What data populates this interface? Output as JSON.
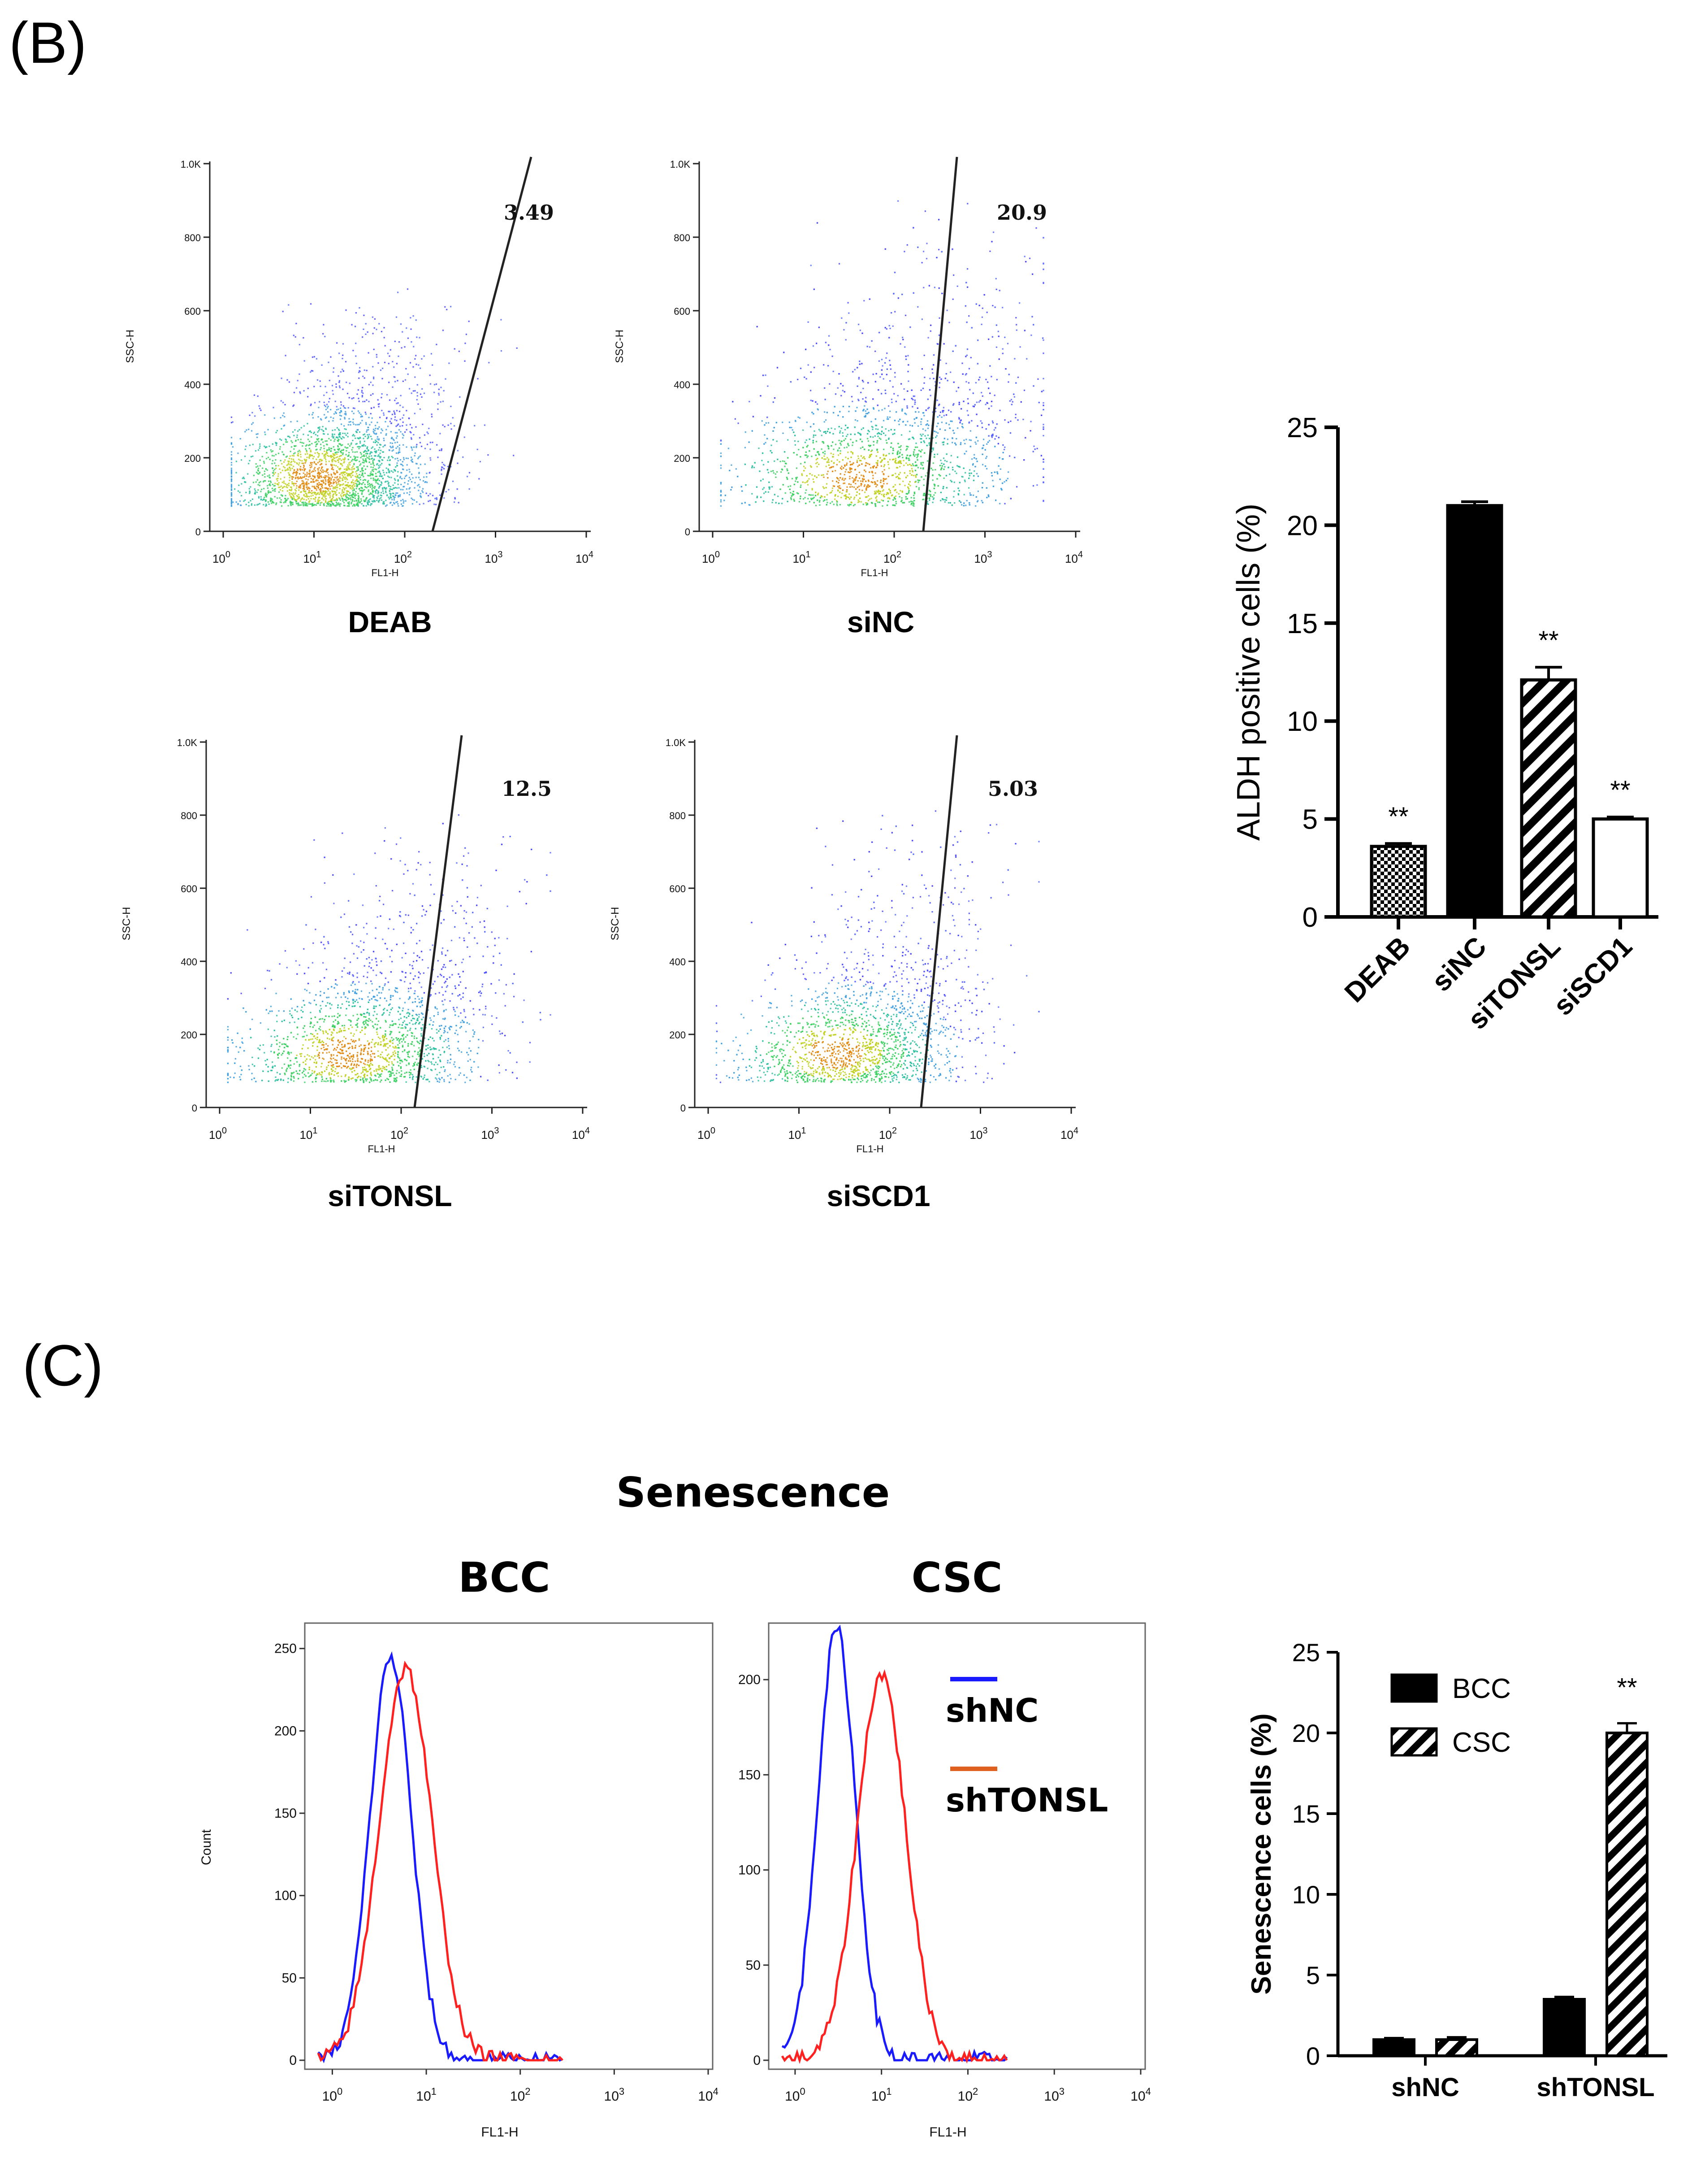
{
  "panel_b_label": "(B)",
  "panel_c_label": "(C)",
  "flow": {
    "x_axis_label": "FL1-H",
    "y_axis_label": "SSC-H",
    "y_ticks": [
      "0",
      "200",
      "400",
      "600",
      "800",
      "1.0K"
    ],
    "x_ticks": [
      {
        "base": "10",
        "exp": "0"
      },
      {
        "base": "10",
        "exp": "1"
      },
      {
        "base": "10",
        "exp": "2"
      },
      {
        "base": "10",
        "exp": "3"
      },
      {
        "base": "10",
        "exp": "4"
      }
    ],
    "plots": [
      {
        "sample": "DEAB",
        "gate_value": "3.49"
      },
      {
        "sample": "siNC",
        "gate_value": "20.9"
      },
      {
        "sample": "siTONSL",
        "gate_value": "12.5"
      },
      {
        "sample": "siSCD1",
        "gate_value": "5.03"
      }
    ]
  },
  "senescence_title": "Senescence",
  "histograms": {
    "x_axis_label": "FL1-H",
    "y_axis_label": "Count",
    "legend": [
      {
        "label": "shNC",
        "color": "#1a1aff"
      },
      {
        "label": "shTONSL",
        "color": "#e06020"
      }
    ],
    "panels": [
      {
        "title": "BCC",
        "y_ticks": [
          "0",
          "50",
          "100",
          "150",
          "200",
          "250"
        ]
      },
      {
        "title": "CSC",
        "y_ticks": [
          "0",
          "50",
          "100",
          "150",
          "200"
        ]
      }
    ]
  },
  "chart_data": [
    {
      "type": "bar",
      "ylabel": "ALDH positive cells (%)",
      "categories": [
        "DEAB",
        "siNC",
        "siTONSL",
        "siSCD1"
      ],
      "values": [
        3.6,
        21.0,
        12.1,
        5.0
      ],
      "errors": [
        0.15,
        0.2,
        0.65,
        0.1
      ],
      "fills": [
        "checker",
        "solid-black",
        "hatched",
        "white"
      ],
      "significance": [
        "**",
        "",
        "**",
        "**"
      ],
      "ylim": [
        0,
        25
      ],
      "yticks": [
        "0",
        "5",
        "10",
        "15",
        "20",
        "25"
      ]
    },
    {
      "type": "bar",
      "ylabel": "Senescence cells (%)",
      "categories": [
        "shNC",
        "shTONSL"
      ],
      "series": [
        {
          "name": "BCC",
          "values": [
            1.0,
            3.5
          ],
          "errors": [
            0.1,
            0.15
          ],
          "fill": "solid-black"
        },
        {
          "name": "CSC",
          "values": [
            1.0,
            20.0
          ],
          "errors": [
            0.15,
            0.6
          ],
          "fill": "hatched"
        }
      ],
      "significance": [
        "",
        "**"
      ],
      "ylim": [
        0,
        25
      ],
      "yticks": [
        "0",
        "5",
        "10",
        "15",
        "20",
        "25"
      ],
      "legend_position": "top-left"
    }
  ]
}
